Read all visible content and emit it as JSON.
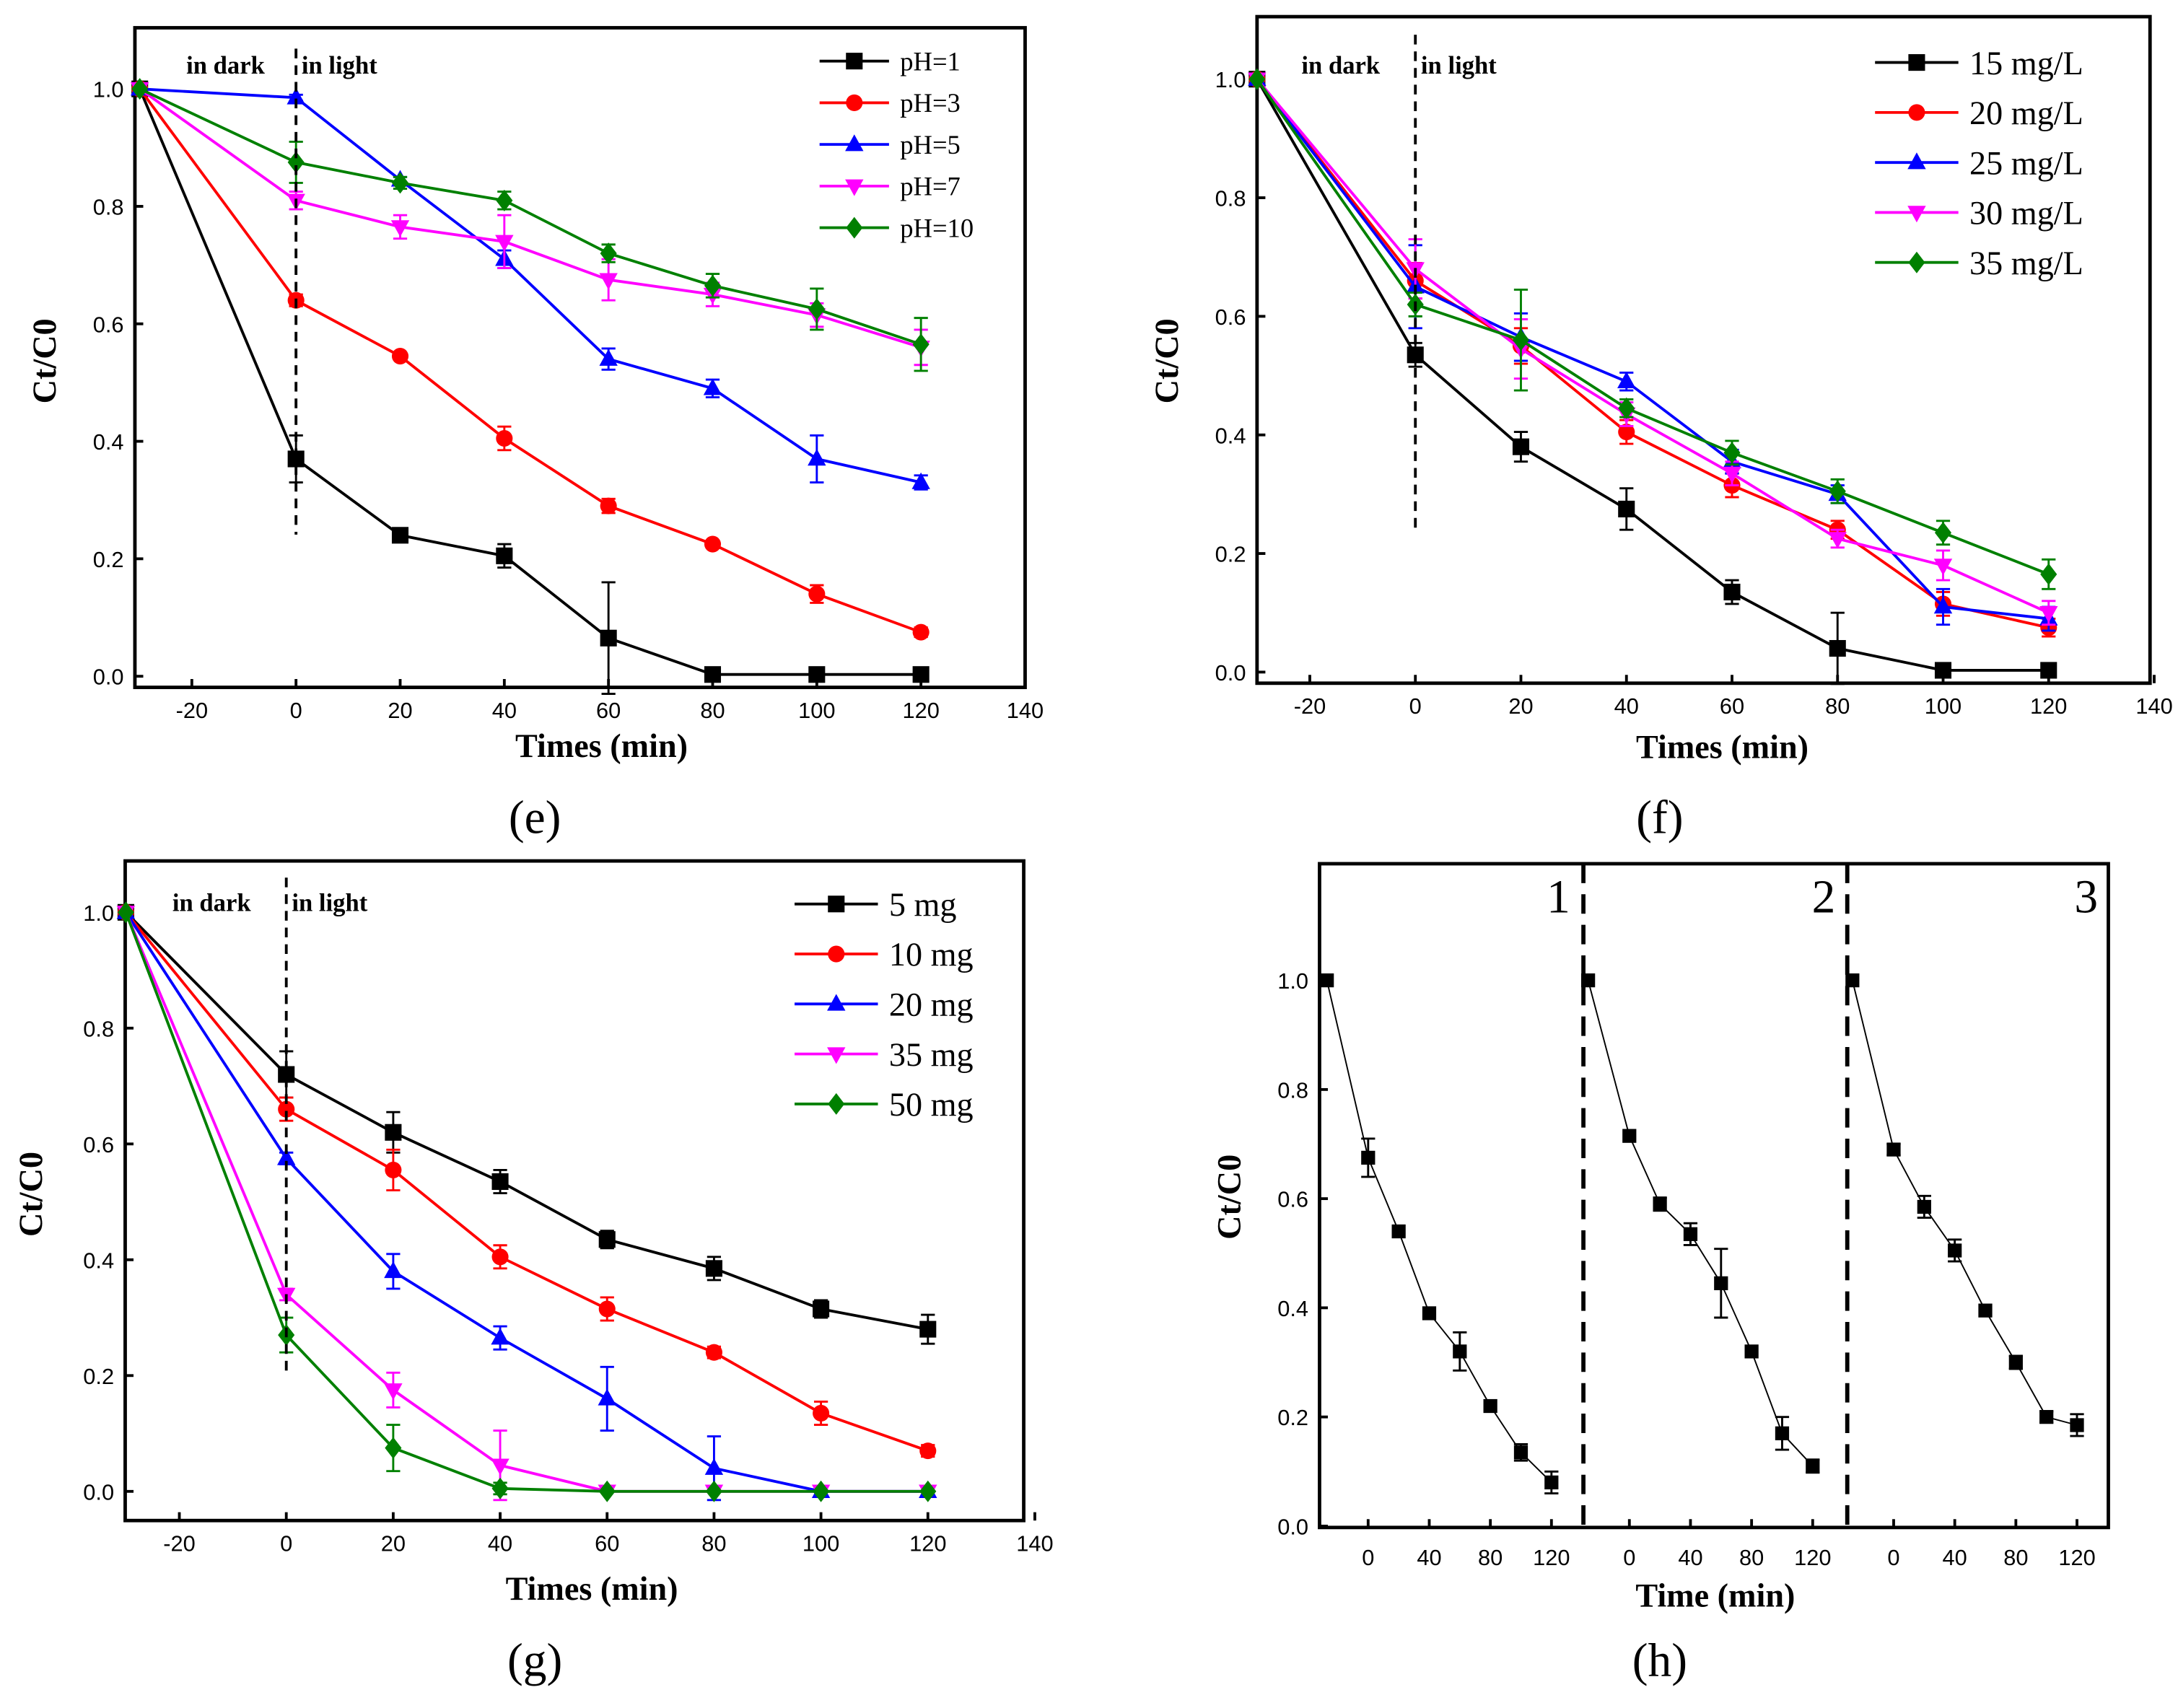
{
  "chart_data": [
    {
      "type": "line",
      "panel_label": "(e)",
      "xlabel": "Times (min)",
      "ylabel": "Ct/C0",
      "xlim": [
        -31,
        140
      ],
      "ylim": [
        -0.02,
        1.1
      ],
      "xticks": [
        -20,
        0,
        20,
        40,
        60,
        80,
        100,
        120,
        140
      ],
      "yticks": [
        "0.0",
        "0.2",
        "0.4",
        "0.6",
        "0.8",
        "1.0"
      ],
      "annotations": [
        "in dark",
        "in light"
      ],
      "legend_placement": "top-right",
      "x": [
        -30,
        0,
        20,
        40,
        60,
        80,
        100,
        120
      ],
      "series": [
        {
          "name": "pH=1",
          "color": "#000000",
          "marker": "square",
          "values": [
            1,
            0.37,
            0.24,
            0.205,
            0.065,
            0.003,
            0.003,
            0.003
          ],
          "errors": [
            0,
            0.04,
            0.01,
            0.02,
            0.095,
            0,
            0,
            0
          ]
        },
        {
          "name": "pH=3",
          "color": "#ff0000",
          "marker": "circle",
          "values": [
            1,
            0.64,
            0.545,
            0.405,
            0.29,
            0.225,
            0.14,
            0.075
          ],
          "errors": [
            0,
            0.01,
            0.005,
            0.02,
            0.012,
            0.005,
            0.015,
            0.008
          ]
        },
        {
          "name": "pH=5",
          "color": "#0000ff",
          "marker": "triangle-up",
          "values": [
            1,
            0.985,
            0.845,
            0.71,
            0.54,
            0.49,
            0.37,
            0.33
          ],
          "errors": [
            0,
            0.005,
            0.005,
            0.015,
            0.018,
            0.015,
            0.04,
            0.012
          ]
        },
        {
          "name": "pH=7",
          "color": "#ff00ff",
          "marker": "triangle-down",
          "values": [
            1,
            0.81,
            0.765,
            0.74,
            0.675,
            0.65,
            0.615,
            0.56
          ],
          "errors": [
            0,
            0.015,
            0.02,
            0.045,
            0.035,
            0.02,
            0.02,
            0.03
          ]
        },
        {
          "name": "pH=10",
          "color": "#008000",
          "marker": "diamond",
          "values": [
            1,
            0.875,
            0.84,
            0.81,
            0.72,
            0.665,
            0.625,
            0.565
          ],
          "errors": [
            0,
            0.035,
            0.01,
            0.015,
            0.015,
            0.02,
            0.035,
            0.045
          ]
        }
      ]
    },
    {
      "type": "line",
      "panel_label": "(f)",
      "xlabel": "Times (min)",
      "ylabel": "Ct/C0",
      "xlim": [
        -30,
        140
      ],
      "ylim": [
        -0.02,
        1.1
      ],
      "xticks": [
        -20,
        0,
        20,
        40,
        60,
        80,
        100,
        120,
        140
      ],
      "yticks": [
        "0.0",
        "0.2",
        "0.4",
        "0.6",
        "0.8",
        "1.0"
      ],
      "annotations": [
        "in dark",
        "in light"
      ],
      "legend_placement": "top-right",
      "x": [
        -30,
        0,
        20,
        40,
        60,
        80,
        100,
        120
      ],
      "series": [
        {
          "name": "15 mg/L",
          "color": "#000000",
          "marker": "square",
          "values": [
            1,
            0.535,
            0.38,
            0.275,
            0.135,
            0.04,
            0.003,
            0.003
          ],
          "errors": [
            0,
            0.02,
            0.025,
            0.035,
            0.02,
            0.06,
            0,
            0
          ]
        },
        {
          "name": "20 mg/L",
          "color": "#ff0000",
          "marker": "circle",
          "values": [
            1,
            0.66,
            0.55,
            0.405,
            0.315,
            0.24,
            0.115,
            0.075
          ],
          "errors": [
            0,
            0.03,
            0.03,
            0.02,
            0.02,
            0.015,
            0.02,
            0.015
          ]
        },
        {
          "name": "25 mg/L",
          "color": "#0000ff",
          "marker": "triangle-up",
          "values": [
            1,
            0.65,
            0.565,
            0.49,
            0.355,
            0.3,
            0.11,
            0.09
          ],
          "errors": [
            0,
            0.07,
            0.04,
            0.015,
            0.02,
            0.015,
            0.03,
            0.02
          ]
        },
        {
          "name": "30 mg/L",
          "color": "#ff00ff",
          "marker": "triangle-down",
          "values": [
            1,
            0.68,
            0.545,
            0.435,
            0.335,
            0.225,
            0.18,
            0.1
          ],
          "errors": [
            0,
            0.05,
            0.05,
            0.02,
            0.02,
            0.015,
            0.025,
            0.02
          ]
        },
        {
          "name": "35 mg/L",
          "color": "#008000",
          "marker": "diamond",
          "values": [
            1,
            0.62,
            0.56,
            0.445,
            0.37,
            0.305,
            0.235,
            0.165
          ],
          "errors": [
            0,
            0.02,
            0.085,
            0.015,
            0.02,
            0.02,
            0.02,
            0.025
          ]
        }
      ]
    },
    {
      "type": "line",
      "panel_label": "(g)",
      "xlabel": "Times (min)",
      "ylabel": "Ct/C0",
      "xlim": [
        -30,
        140
      ],
      "ylim": [
        -0.05,
        1.1
      ],
      "xticks": [
        -20,
        0,
        20,
        40,
        60,
        80,
        100,
        120,
        140
      ],
      "yticks": [
        "0.0",
        "0.2",
        "0.4",
        "0.6",
        "0.8",
        "1.0"
      ],
      "annotations": [
        "in dark",
        "in light"
      ],
      "legend_placement": "top-right",
      "x": [
        -30,
        0,
        20,
        40,
        60,
        80,
        100,
        120
      ],
      "series": [
        {
          "name": "5 mg",
          "color": "#000000",
          "marker": "square",
          "values": [
            1,
            0.72,
            0.62,
            0.535,
            0.435,
            0.385,
            0.315,
            0.28
          ],
          "errors": [
            0,
            0.04,
            0.035,
            0.02,
            0.015,
            0.02,
            0.015,
            0.025
          ]
        },
        {
          "name": "10 mg",
          "color": "#ff0000",
          "marker": "circle",
          "values": [
            1,
            0.66,
            0.555,
            0.405,
            0.315,
            0.24,
            0.135,
            0.07
          ],
          "errors": [
            0,
            0.02,
            0.035,
            0.02,
            0.02,
            0.01,
            0.02,
            0.01
          ]
        },
        {
          "name": "20 mg",
          "color": "#0000ff",
          "marker": "triangle-up",
          "values": [
            1,
            0.575,
            0.38,
            0.265,
            0.16,
            0.04,
            0,
            0
          ],
          "errors": [
            0,
            0.01,
            0.03,
            0.02,
            0.055,
            0.055,
            0,
            0
          ]
        },
        {
          "name": "35 mg",
          "color": "#ff00ff",
          "marker": "triangle-down",
          "values": [
            1,
            0.34,
            0.175,
            0.045,
            0,
            0,
            0,
            0
          ],
          "errors": [
            0,
            0.01,
            0.03,
            0.06,
            0,
            0,
            0,
            0
          ]
        },
        {
          "name": "50 mg",
          "color": "#008000",
          "marker": "diamond",
          "values": [
            1,
            0.27,
            0.075,
            0.005,
            0,
            0,
            0,
            0
          ],
          "errors": [
            0,
            0.03,
            0.04,
            0.01,
            0,
            0,
            0,
            0
          ]
        }
      ]
    },
    {
      "type": "line",
      "panel_label": "(h)",
      "xlabel": "Time (min)",
      "ylabel": "Ct/C0",
      "ylim": [
        0,
        1.1
      ],
      "xticks": [
        "0",
        "40",
        "80",
        "120"
      ],
      "yticks": [
        "0.0",
        "0.2",
        "0.4",
        "0.6",
        "0.8",
        "1.0"
      ],
      "cycle_labels": [
        "1",
        "2",
        "3"
      ],
      "x": [
        -27,
        0,
        20,
        40,
        60,
        80,
        100,
        120
      ],
      "series": [
        {
          "name": "cycle 1",
          "color": "#000000",
          "marker": "square",
          "values": [
            1,
            0.675,
            0.54,
            0.39,
            0.32,
            0.22,
            0.135,
            0.08
          ],
          "errors": [
            0,
            0.035,
            0,
            0,
            0.035,
            0,
            0.015,
            0.02
          ]
        },
        {
          "name": "cycle 2",
          "color": "#000000",
          "marker": "square",
          "values": [
            1,
            0.715,
            0.59,
            0.535,
            0.445,
            0.32,
            0.17,
            0.11
          ],
          "errors": [
            0,
            0,
            0.012,
            0.02,
            0.063,
            0,
            0.03,
            0.012
          ]
        },
        {
          "name": "cycle 3",
          "color": "#000000",
          "marker": "square",
          "values": [
            1,
            0.69,
            0.585,
            0.505,
            0.395,
            0.3,
            0.2,
            0.185
          ],
          "errors": [
            0,
            0.01,
            0.02,
            0.02,
            0,
            0.012,
            0.01,
            0.02
          ]
        }
      ]
    }
  ]
}
